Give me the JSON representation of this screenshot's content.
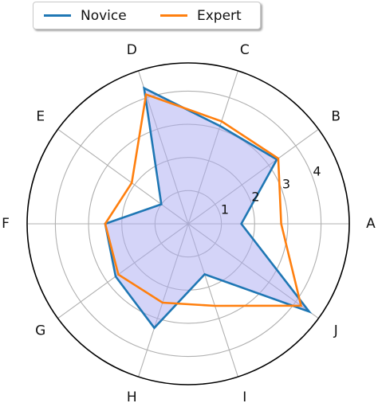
{
  "chart_data": {
    "type": "radar",
    "categories": [
      "A",
      "B",
      "C",
      "D",
      "E",
      "F",
      "G",
      "H",
      "I",
      "J"
    ],
    "series": [
      {
        "name": "Novice",
        "color": "#1f77b4",
        "fill": "#aaaaf2",
        "values": [
          1.6,
          3.3,
          3.1,
          4.3,
          1.0,
          2.5,
          2.7,
          3.3,
          1.6,
          4.5
        ]
      },
      {
        "name": "Expert",
        "color": "#ff7f0e",
        "values": [
          2.8,
          3.35,
          3.25,
          4.1,
          2.1,
          2.5,
          2.6,
          2.5,
          2.6,
          4.2
        ]
      }
    ],
    "rticks": [
      1,
      2,
      3,
      4
    ],
    "rtick_labels": [
      "1",
      "2",
      "3",
      "4"
    ],
    "rlim": [
      0,
      4.85
    ],
    "grid": true,
    "legend": "top-left"
  }
}
